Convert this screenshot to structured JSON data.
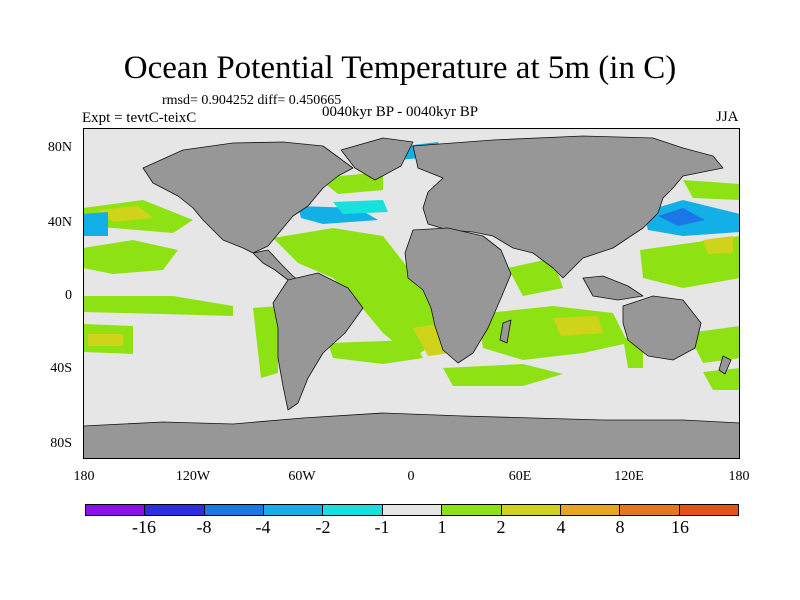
{
  "title": "Ocean Potential Temperature at 5m (in C)",
  "stats": "rmsd= 0.904252 diff= 0.450665",
  "experiment": "Expt = tevtC-teixC",
  "period": "0040kyr BP - 0040kyr BP",
  "season": "JJA",
  "lat_labels": [
    "80N",
    "40N",
    "0",
    "40S",
    "80S"
  ],
  "lon_labels": [
    "180",
    "120W",
    "60W",
    "0",
    "60E",
    "120E",
    "180"
  ],
  "colorbar": {
    "colors": [
      "#8a10ee",
      "#2d2de6",
      "#1a78e6",
      "#13b0e8",
      "#18e0dc",
      "#e6e6e6",
      "#8ee214",
      "#cfd41a",
      "#e2a81c",
      "#e27a1c",
      "#e6501a"
    ],
    "labels": [
      "-16",
      "-8",
      "-4",
      "-2",
      "-1",
      "1",
      "2",
      "4",
      "8",
      "16"
    ]
  },
  "colors": {
    "land": "#979797",
    "ocean": "#e6e6e6",
    "coast": "#111111"
  }
}
